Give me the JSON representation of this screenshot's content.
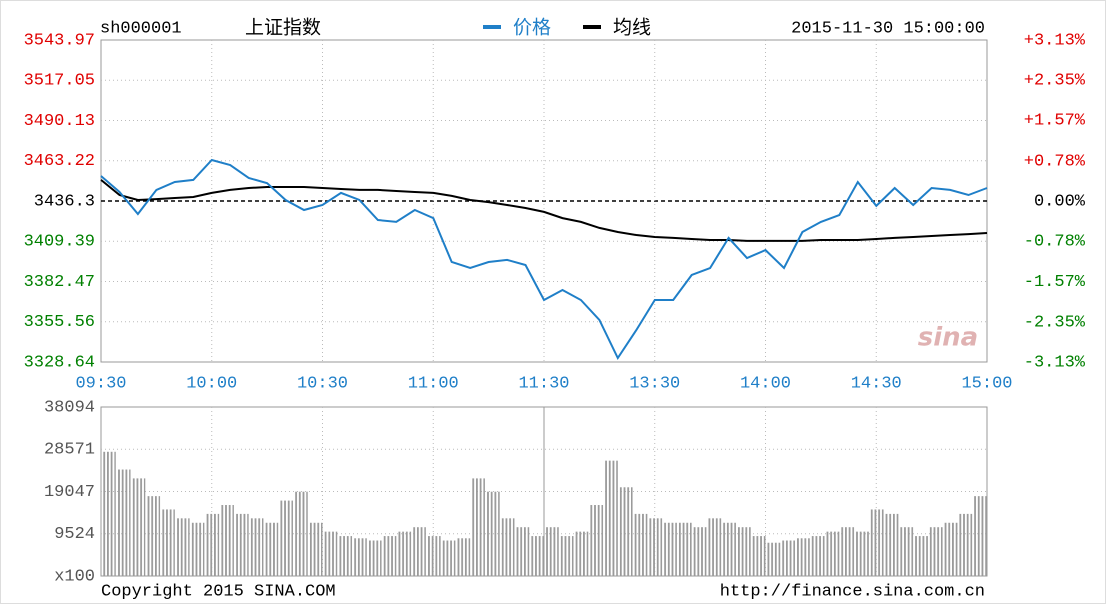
{
  "header": {
    "code": "sh000001",
    "title": "上证指数",
    "timestamp": "2015-11-30 15:00:00"
  },
  "footer": {
    "copyright": "Copyright 2015 SINA.COM",
    "source_url": "http://finance.sina.com.cn"
  },
  "watermark": "sina",
  "chart_data": [
    {
      "type": "line",
      "x": [
        0,
        5,
        10,
        15,
        20,
        25,
        30,
        35,
        40,
        45,
        50,
        55,
        60,
        65,
        70,
        75,
        80,
        85,
        90,
        95,
        100,
        105,
        110,
        115,
        120,
        125,
        130,
        135,
        140,
        145,
        150,
        155,
        160,
        165,
        170,
        175,
        180,
        185,
        190,
        195,
        200,
        205,
        210,
        215,
        220,
        225,
        230,
        235,
        240
      ],
      "series": [
        {
          "name": "价格",
          "color": "#1f7fc8",
          "values": [
            3453.0,
            3442.3,
            3427.6,
            3443.7,
            3449.0,
            3450.4,
            3463.7,
            3460.4,
            3451.7,
            3448.3,
            3437.0,
            3430.3,
            3433.6,
            3441.7,
            3437.0,
            3423.6,
            3422.3,
            3430.3,
            3424.9,
            3395.5,
            3391.5,
            3395.5,
            3396.9,
            3393.5,
            3370.1,
            3376.8,
            3370.1,
            3356.7,
            3331.3,
            3350.0,
            3370.1,
            3370.1,
            3386.8,
            3391.5,
            3411.6,
            3398.2,
            3403.5,
            3391.5,
            3415.6,
            3422.3,
            3426.9,
            3449.0,
            3433.0,
            3445.0,
            3433.6,
            3445.0,
            3443.7,
            3440.3,
            3445.0
          ]
        },
        {
          "name": "均线",
          "color": "#000000",
          "values": [
            3450.4,
            3440.3,
            3437.0,
            3437.6,
            3438.3,
            3439.0,
            3441.7,
            3443.7,
            3445.0,
            3445.7,
            3445.7,
            3445.7,
            3445.0,
            3444.3,
            3443.7,
            3443.7,
            3443.0,
            3442.3,
            3441.7,
            3439.7,
            3437.0,
            3435.6,
            3433.6,
            3431.6,
            3429.0,
            3424.9,
            3422.3,
            3418.3,
            3415.6,
            3413.6,
            3412.2,
            3411.6,
            3410.9,
            3410.2,
            3410.2,
            3409.6,
            3409.6,
            3409.6,
            3409.6,
            3410.2,
            3410.2,
            3410.2,
            3410.9,
            3411.6,
            3412.2,
            3412.9,
            3413.6,
            3414.2,
            3414.9
          ]
        }
      ],
      "xlim": [
        0,
        240
      ],
      "xticks": [
        {
          "value": 0,
          "label": "09:30"
        },
        {
          "value": 30,
          "label": "10:00"
        },
        {
          "value": 60,
          "label": "10:30"
        },
        {
          "value": 90,
          "label": "11:00"
        },
        {
          "value": 120,
          "label": "11:30"
        },
        {
          "value": 150,
          "label": "13:30"
        },
        {
          "value": 180,
          "label": "14:00"
        },
        {
          "value": 210,
          "label": "14:30"
        },
        {
          "value": 240,
          "label": "15:00"
        }
      ],
      "ylim": [
        3328.64,
        3543.97
      ],
      "yticks": [
        3543.97,
        3517.05,
        3490.13,
        3463.22,
        3436.3,
        3409.39,
        3382.47,
        3355.56,
        3328.64
      ],
      "ytick_labels_precision_note": null,
      "y2lim": [
        -3.13,
        3.13
      ],
      "y2ticks": [
        {
          "value": 3.13,
          "label": "+3.13%"
        },
        {
          "value": 2.35,
          "label": "+2.35%"
        },
        {
          "value": 1.57,
          "label": "+1.57%"
        },
        {
          "value": 0.78,
          "label": "+0.78%"
        },
        {
          "value": 0,
          "label": "0.00%"
        },
        {
          "value": -0.78,
          "label": "-0.78%"
        },
        {
          "value": -1.57,
          "label": "-1.57%"
        },
        {
          "value": -2.35,
          "label": "-2.35%"
        },
        {
          "value": -3.13,
          "label": "-3.13%"
        }
      ],
      "up_color": "#e00000",
      "down_color": "#008000",
      "grid": true
    },
    {
      "type": "bar",
      "color": "#9a9a9a",
      "x": [
        0,
        4,
        8,
        12,
        16,
        20,
        24,
        28,
        32,
        36,
        40,
        44,
        48,
        52,
        56,
        60,
        64,
        68,
        72,
        76,
        80,
        84,
        88,
        92,
        96,
        100,
        104,
        108,
        112,
        116,
        120,
        124,
        128,
        132,
        136,
        140,
        144,
        148,
        152,
        156,
        160,
        164,
        168,
        172,
        176,
        180,
        184,
        188,
        192,
        196,
        200,
        204,
        208,
        212,
        216,
        220,
        224,
        228,
        232,
        236
      ],
      "values": [
        28000,
        24000,
        22000,
        18000,
        15000,
        13000,
        12000,
        14000,
        16000,
        14000,
        13000,
        12000,
        17000,
        19000,
        12000,
        10000,
        9000,
        8500,
        8000,
        9000,
        10000,
        11000,
        9000,
        8000,
        8500,
        22000,
        19000,
        13000,
        11000,
        9000,
        11000,
        9000,
        10000,
        16000,
        26000,
        20000,
        14000,
        13000,
        12000,
        12000,
        11000,
        13000,
        12000,
        11000,
        9000,
        7500,
        8000,
        8500,
        9000,
        10000,
        11000,
        10000,
        15000,
        14000,
        11000,
        9000,
        11000,
        12000,
        14000,
        18000
      ],
      "xlim": [
        0,
        240
      ],
      "ylim": [
        0,
        38094
      ],
      "yticks": [
        38094,
        28571,
        19047,
        9524,
        {
          "value": 0,
          "label": "x100"
        }
      ],
      "grid": true
    }
  ]
}
